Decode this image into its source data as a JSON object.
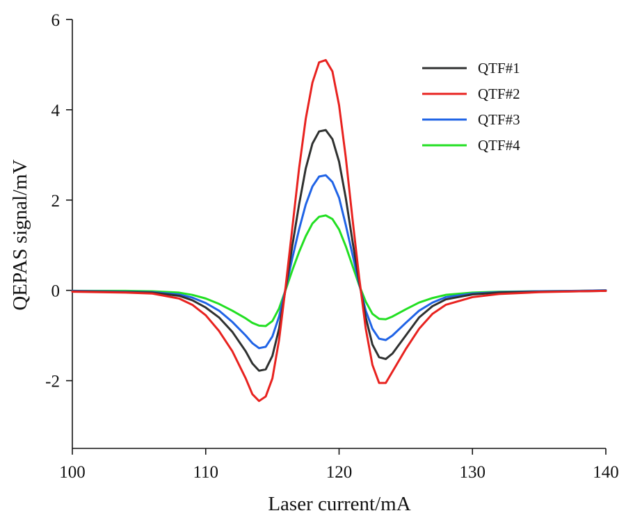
{
  "chart_data": {
    "type": "line",
    "xlabel": "Laser current/mA",
    "ylabel": "QEPAS signal/mV",
    "xlim": [
      100,
      140
    ],
    "ylim": [
      -3.5,
      6
    ],
    "xticks": [
      100,
      110,
      120,
      130,
      140
    ],
    "xtick_labels": [
      "100",
      "110",
      "120",
      "130",
      "140"
    ],
    "yticks": [
      -2,
      0,
      2,
      4,
      6
    ],
    "ytick_labels": [
      "-2",
      "0",
      "2",
      "4",
      "6"
    ],
    "grid": false,
    "legend_position": "top-right",
    "x": [
      100,
      102,
      104,
      106,
      108,
      109,
      110,
      111,
      112,
      113,
      113.5,
      114,
      114.5,
      115,
      115.5,
      116,
      116.5,
      117,
      117.5,
      118,
      118.5,
      119,
      119.5,
      120,
      120.5,
      121,
      121.5,
      122,
      122.5,
      123,
      123.5,
      124,
      125,
      126,
      127,
      128,
      130,
      132,
      135,
      138,
      140
    ],
    "series": [
      {
        "name": "QTF#1",
        "color": "#2f3130",
        "values": [
          -0.02,
          -0.03,
          -0.04,
          -0.05,
          -0.12,
          -0.22,
          -0.38,
          -0.6,
          -0.92,
          -1.35,
          -1.62,
          -1.78,
          -1.75,
          -1.45,
          -0.85,
          0.05,
          1.0,
          1.9,
          2.7,
          3.25,
          3.52,
          3.55,
          3.35,
          2.85,
          2.05,
          1.1,
          0.2,
          -0.6,
          -1.2,
          -1.48,
          -1.52,
          -1.4,
          -1.0,
          -0.6,
          -0.35,
          -0.2,
          -0.09,
          -0.05,
          -0.03,
          -0.02,
          -0.01
        ]
      },
      {
        "name": "QTF#2",
        "color": "#e8221f",
        "values": [
          -0.03,
          -0.04,
          -0.05,
          -0.07,
          -0.18,
          -0.32,
          -0.55,
          -0.9,
          -1.35,
          -1.95,
          -2.3,
          -2.45,
          -2.35,
          -1.95,
          -1.1,
          0.1,
          1.4,
          2.7,
          3.8,
          4.6,
          5.05,
          5.1,
          4.85,
          4.1,
          2.95,
          1.6,
          0.3,
          -0.85,
          -1.65,
          -2.05,
          -2.05,
          -1.8,
          -1.3,
          -0.85,
          -0.52,
          -0.32,
          -0.15,
          -0.08,
          -0.04,
          -0.02,
          -0.01
        ]
      },
      {
        "name": "QTF#3",
        "color": "#1f63e6",
        "values": [
          -0.01,
          -0.02,
          -0.03,
          -0.04,
          -0.09,
          -0.16,
          -0.28,
          -0.45,
          -0.7,
          -1.0,
          -1.17,
          -1.28,
          -1.25,
          -1.02,
          -0.58,
          0.05,
          0.72,
          1.35,
          1.9,
          2.3,
          2.52,
          2.55,
          2.4,
          2.05,
          1.45,
          0.8,
          0.15,
          -0.45,
          -0.85,
          -1.07,
          -1.1,
          -1.0,
          -0.72,
          -0.45,
          -0.27,
          -0.15,
          -0.07,
          -0.04,
          -0.02,
          -0.01,
          0.0
        ]
      },
      {
        "name": "QTF#4",
        "color": "#22df22",
        "values": [
          -0.01,
          -0.01,
          -0.01,
          -0.02,
          -0.05,
          -0.1,
          -0.18,
          -0.3,
          -0.45,
          -0.62,
          -0.72,
          -0.78,
          -0.79,
          -0.68,
          -0.4,
          0.02,
          0.45,
          0.85,
          1.2,
          1.48,
          1.63,
          1.66,
          1.58,
          1.35,
          0.98,
          0.55,
          0.12,
          -0.25,
          -0.52,
          -0.63,
          -0.64,
          -0.58,
          -0.42,
          -0.27,
          -0.17,
          -0.1,
          -0.05,
          -0.03,
          -0.02,
          -0.01,
          0.0
        ]
      }
    ]
  }
}
